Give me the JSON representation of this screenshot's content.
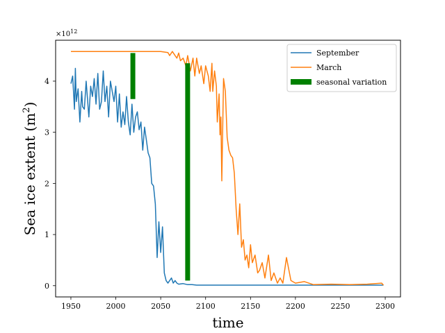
{
  "chart_data": {
    "type": "line",
    "xlabel": "time",
    "ylabel": "Sea ice extent (m",
    "ylabel_sup": "2",
    "ylabel_close": ")",
    "y_offset_label": "×10",
    "y_offset_exp": "12",
    "xlim": [
      1933,
      2317
    ],
    "ylim": [
      -0.22,
      4.8
    ],
    "x_ticks": [
      {
        "value": 1950,
        "label": "1950"
      },
      {
        "value": 2000,
        "label": "2000"
      },
      {
        "value": 2050,
        "label": "2050"
      },
      {
        "value": 2100,
        "label": "2100"
      },
      {
        "value": 2150,
        "label": "2150"
      },
      {
        "value": 2200,
        "label": "2200"
      },
      {
        "value": 2250,
        "label": "2250"
      },
      {
        "value": 2300,
        "label": "2300"
      }
    ],
    "y_ticks": [
      {
        "value": 0,
        "label": "0"
      },
      {
        "value": 1,
        "label": "1"
      },
      {
        "value": 2,
        "label": "2"
      },
      {
        "value": 3,
        "label": "3"
      },
      {
        "value": 4,
        "label": "4"
      }
    ],
    "legend_position": "top-right",
    "series": [
      {
        "name": "September",
        "color": "#1f77b4",
        "x": [
          1950,
          1952,
          1954,
          1955,
          1956,
          1958,
          1960,
          1962,
          1963,
          1965,
          1967,
          1970,
          1972,
          1974,
          1976,
          1978,
          1980,
          1982,
          1984,
          1986,
          1988,
          1990,
          1992,
          1994,
          1996,
          1998,
          2000,
          2002,
          2004,
          2006,
          2008,
          2010,
          2012,
          2014,
          2016,
          2018,
          2020,
          2022,
          2024,
          2026,
          2028,
          2030,
          2032,
          2034,
          2036,
          2038,
          2040,
          2042,
          2044,
          2046,
          2048,
          2050,
          2052,
          2054,
          2056,
          2058,
          2060,
          2062,
          2064,
          2066,
          2068,
          2070,
          2075,
          2080,
          2085,
          2090,
          2100,
          2120,
          2150,
          2200,
          2250,
          2298
        ],
        "y": [
          3.95,
          4.1,
          3.45,
          4.25,
          3.6,
          3.85,
          3.2,
          3.8,
          3.5,
          3.45,
          4.0,
          3.3,
          3.9,
          3.7,
          4.05,
          3.55,
          4.15,
          3.45,
          3.6,
          4.2,
          3.6,
          3.9,
          3.3,
          4.0,
          3.8,
          3.6,
          3.9,
          3.2,
          3.75,
          3.1,
          3.4,
          3.15,
          3.7,
          3.2,
          2.95,
          3.55,
          3.0,
          3.3,
          3.4,
          3.05,
          3.2,
          2.65,
          3.1,
          2.85,
          2.6,
          2.5,
          2.0,
          1.95,
          1.6,
          0.55,
          1.25,
          0.65,
          1.15,
          0.25,
          0.1,
          0.05,
          0.1,
          0.15,
          0.05,
          0.1,
          0.05,
          0.03,
          0.04,
          0.02,
          0.02,
          0.01,
          0.01,
          0.01,
          0.01,
          0.01,
          0.01,
          0.01
        ]
      },
      {
        "name": "March",
        "color": "#ff7f0e",
        "x": [
          1950,
          1970,
          2000,
          2030,
          2050,
          2058,
          2060,
          2063,
          2066,
          2068,
          2070,
          2072,
          2075,
          2078,
          2080,
          2083,
          2086,
          2088,
          2090,
          2093,
          2095,
          2098,
          2100,
          2103,
          2105,
          2107,
          2108,
          2110,
          2112,
          2113,
          2115,
          2116,
          2117,
          2118,
          2120,
          2122,
          2124,
          2126,
          2128,
          2130,
          2132,
          2134,
          2136,
          2138,
          2140,
          2142,
          2144,
          2146,
          2148,
          2150,
          2152,
          2155,
          2158,
          2160,
          2163,
          2166,
          2170,
          2173,
          2176,
          2180,
          2183,
          2186,
          2190,
          2195,
          2200,
          2210,
          2220,
          2240,
          2260,
          2280,
          2296,
          2298
        ],
        "y": [
          4.58,
          4.58,
          4.58,
          4.58,
          4.58,
          4.56,
          4.5,
          4.58,
          4.5,
          4.45,
          4.55,
          4.4,
          4.45,
          4.3,
          4.5,
          4.2,
          4.45,
          4.1,
          4.45,
          4.15,
          4.3,
          3.95,
          4.3,
          4.1,
          3.8,
          4.35,
          3.8,
          4.2,
          3.9,
          3.2,
          3.75,
          2.95,
          3.3,
          2.05,
          4.05,
          3.8,
          2.9,
          2.65,
          2.55,
          2.5,
          2.2,
          1.5,
          1.0,
          1.6,
          0.75,
          0.9,
          0.5,
          0.6,
          0.35,
          0.8,
          0.45,
          0.6,
          0.25,
          0.3,
          0.45,
          0.15,
          0.6,
          0.1,
          0.25,
          0.05,
          0.15,
          0.05,
          0.55,
          0.1,
          0.05,
          0.08,
          0.02,
          0.03,
          0.02,
          0.03,
          0.05,
          0.01
        ]
      }
    ],
    "bars": [
      {
        "x": 2019,
        "y0": 3.65,
        "y1": 4.55
      },
      {
        "x": 2080,
        "y0": 0.1,
        "y1": 4.35
      }
    ],
    "bar_series": {
      "name": "seasonal variation",
      "color": "#008000"
    }
  }
}
